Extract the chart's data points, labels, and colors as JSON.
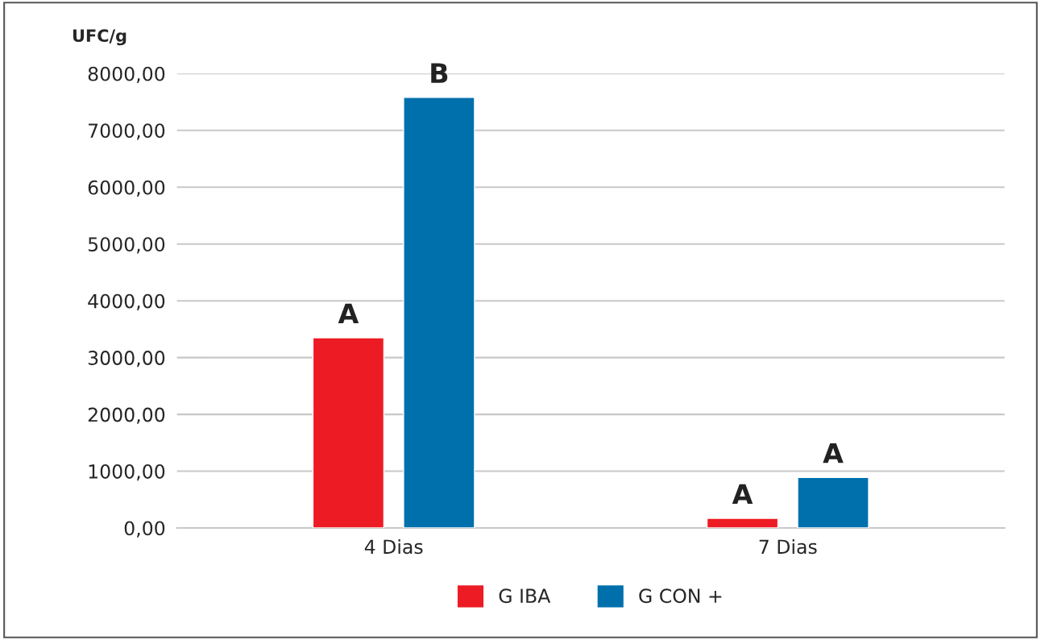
{
  "chart_data": {
    "type": "bar",
    "ylabel": "UFC/g",
    "categories": [
      "4 Dias",
      "7 Dias"
    ],
    "series": [
      {
        "name": "G IBA",
        "color": "#ed1c24",
        "values": [
          3350,
          170
        ],
        "value_labels": [
          "A",
          "A"
        ]
      },
      {
        "name": "G CON +",
        "color": "#0070ad",
        "values": [
          7580,
          890
        ],
        "value_labels": [
          "B",
          "A"
        ]
      }
    ],
    "ylim": [
      0,
      8000
    ],
    "yticks": [
      {
        "value": 0,
        "label": "0,00"
      },
      {
        "value": 1000,
        "label": "1000,00"
      },
      {
        "value": 2000,
        "label": "2000,00"
      },
      {
        "value": 3000,
        "label": "3000,00"
      },
      {
        "value": 4000,
        "label": "4000,00"
      },
      {
        "value": 5000,
        "label": "5000,00"
      },
      {
        "value": 6000,
        "label": "6000,00"
      },
      {
        "value": 7000,
        "label": "7000,00"
      },
      {
        "value": 8000,
        "label": "8000,00"
      }
    ],
    "grid": "y",
    "legend": "bottom"
  }
}
